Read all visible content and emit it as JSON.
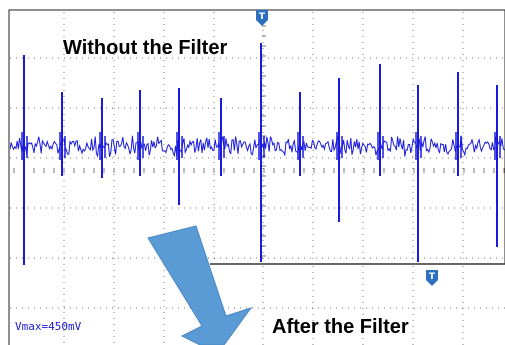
{
  "traces": {
    "top_title": "Without the Filter",
    "bottom_title": "After the Filter"
  },
  "readout": {
    "vmax": "Vmax=450mV"
  },
  "colors": {
    "trace": "#1a1adc",
    "grid": "#7a7a7a",
    "arrow": "#5b9bd5",
    "trigger_marker": "#2e6fbe",
    "background": "#ffffff"
  },
  "icons": {
    "trigger_top": "trigger-marker-icon",
    "trigger_bottom": "trigger-marker-icon",
    "arrow": "down-arrow-icon"
  }
}
